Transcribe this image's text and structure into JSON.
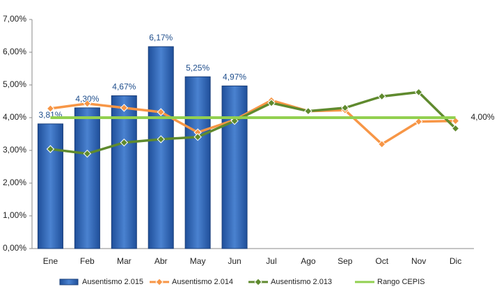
{
  "chart_data": {
    "type": "bar_line",
    "categories": [
      "Ene",
      "Feb",
      "Mar",
      "Abr",
      "May",
      "Jun",
      "Jul",
      "Ago",
      "Sep",
      "Oct",
      "Nov",
      "Dic"
    ],
    "series": [
      {
        "name": "Ausentismo 2.015",
        "type": "bar",
        "color": "#3a6fbf",
        "values": [
          3.81,
          4.3,
          4.67,
          6.17,
          5.25,
          4.97,
          null,
          null,
          null,
          null,
          null,
          null
        ],
        "value_labels": [
          "3,81%",
          "4,30%",
          "4,67%",
          "6,17%",
          "5,25%",
          "4,97%",
          null,
          null,
          null,
          null,
          null,
          null
        ]
      },
      {
        "name": "Ausentismo 2.014",
        "type": "line",
        "color": "#f79646",
        "values": [
          4.28,
          4.43,
          4.3,
          4.17,
          3.55,
          3.93,
          4.53,
          4.2,
          4.23,
          3.19,
          3.88,
          3.9
        ]
      },
      {
        "name": "Ausentismo 2.013",
        "type": "line",
        "color": "#5f8a2e",
        "values": [
          3.04,
          2.9,
          3.24,
          3.34,
          3.41,
          3.9,
          4.45,
          4.2,
          4.3,
          4.65,
          4.78,
          3.67
        ]
      },
      {
        "name": "Rango CEPIS",
        "type": "line",
        "color": "#92d050",
        "marker": false,
        "values": [
          4,
          4,
          4,
          4,
          4,
          4,
          4,
          4,
          4,
          4,
          4,
          4
        ],
        "value_labels": [
          null,
          null,
          null,
          null,
          null,
          null,
          null,
          null,
          null,
          null,
          null,
          "4,00%"
        ]
      }
    ],
    "ylim": [
      0,
      7
    ],
    "yticks": [
      {
        "value": 0,
        "label": "0,00%"
      },
      {
        "value": 1,
        "label": "1,00%"
      },
      {
        "value": 2,
        "label": "2,00%"
      },
      {
        "value": 3,
        "label": "3,00%"
      },
      {
        "value": 4,
        "label": "4,00%"
      },
      {
        "value": 5,
        "label": "5,00%"
      },
      {
        "value": 6,
        "label": "6,00%"
      },
      {
        "value": 7,
        "label": "7,00%"
      }
    ],
    "legend": "bottom"
  }
}
